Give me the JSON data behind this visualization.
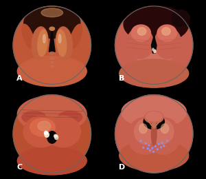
{
  "figsize": [
    3.0,
    2.6
  ],
  "dpi": 100,
  "background_color": "#000000",
  "label_color": "#ffffff",
  "label_fontsize": 8,
  "wspace": 0.02,
  "hspace": 0.02,
  "circle_r": 0.9,
  "panels": [
    "A",
    "B",
    "C",
    "D"
  ],
  "colors": {
    "tissue_base_A": "#c8603a",
    "tissue_base_B": "#c86050",
    "tissue_base_C": "#c05040",
    "tissue_base_D": "#c86050",
    "dark_shadow": "#1a0808",
    "airway_dark": "#080808",
    "highlight": "#e8a878",
    "fold_light": "#d07858",
    "trachea_ring": "#b87050"
  }
}
